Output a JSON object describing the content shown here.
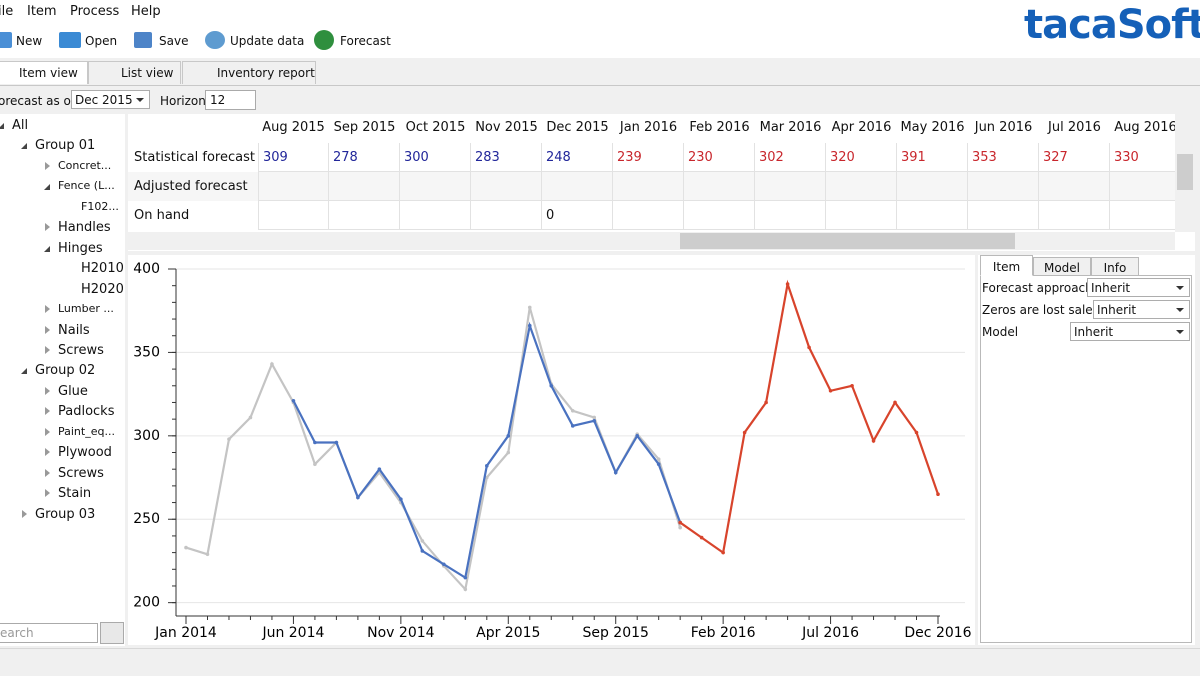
{
  "menu": [
    "ile",
    "Item",
    "Process",
    "Help"
  ],
  "toolbar": [
    "New",
    "Open",
    "Save",
    "Update data",
    "Forecast"
  ],
  "logo": "tacaSoft",
  "tabs": [
    "Item view",
    "List view",
    "Inventory report"
  ],
  "forecast_as_of": {
    "label": "orecast as of",
    "value": "Dec 2015"
  },
  "horizon": {
    "label": "Horizon",
    "value": 12
  },
  "tree": [
    "All",
    "Group 01",
    "Concret...",
    "Fence (L...",
    "F102...",
    "Handles",
    "Hinges",
    "H2010",
    "H2020",
    "Lumber ...",
    "Nails",
    "Screws",
    "Group 02",
    "Glue",
    "Padlocks",
    "Paint_eq...",
    "Plywood",
    "Screws",
    "Stain",
    "Group 03"
  ],
  "search": "earch",
  "grid": {
    "columns": [
      "Aug 2015",
      "Sep 2015",
      "Oct 2015",
      "Nov 2015",
      "Dec 2015",
      "Jan 2016",
      "Feb 2016",
      "Mar 2016",
      "Apr 2016",
      "May 2016",
      "Jun 2016",
      "Jul 2016",
      "Aug 2016"
    ],
    "rows": [
      {
        "label": "Statistical forecast",
        "values": [
          309,
          278,
          300,
          283,
          248,
          239,
          230,
          302,
          320,
          391,
          353,
          327,
          330
        ]
      },
      {
        "label": "Adjusted forecast",
        "values": [
          null,
          null,
          null,
          null,
          null,
          null,
          null,
          null,
          null,
          null,
          null,
          null,
          null
        ]
      },
      {
        "label": "On hand",
        "values": [
          null,
          null,
          null,
          null,
          0,
          null,
          null,
          null,
          null,
          null,
          null,
          null,
          null
        ]
      }
    ],
    "history_color": "#22279a",
    "forecast_color": "#c8262c"
  },
  "chart_data": {
    "type": "line",
    "categories": [
      "Jan 2014",
      null,
      null,
      null,
      null,
      "Jun 2014",
      null,
      null,
      null,
      null,
      "Nov 2014",
      null,
      null,
      null,
      null,
      "Apr 2015",
      null,
      null,
      null,
      null,
      "Sep 2015",
      null,
      null,
      null,
      null,
      "Feb 2016",
      null,
      null,
      null,
      null,
      "Jul 2016",
      null,
      null,
      null,
      null,
      "Dec 2016"
    ],
    "series": [
      {
        "color": "#c4c4c4",
        "values": [
          233,
          229,
          298,
          311,
          343,
          320,
          283,
          296,
          263,
          278,
          260,
          237,
          222,
          208,
          275,
          290,
          377,
          331,
          315,
          311,
          278,
          301,
          286,
          245,
          null,
          null,
          null,
          null,
          null,
          null,
          null,
          null,
          null,
          null,
          null,
          null
        ]
      },
      {
        "color": "#4a72c0",
        "values": [
          null,
          null,
          null,
          null,
          null,
          321,
          296,
          296,
          263,
          280,
          262,
          231,
          223,
          215,
          282,
          300,
          366,
          330,
          306,
          309,
          278,
          300,
          283,
          248,
          null,
          null,
          null,
          null,
          null,
          null,
          null,
          null,
          null,
          null,
          null,
          null
        ]
      },
      {
        "color": "#d8442c",
        "values": [
          null,
          null,
          null,
          null,
          null,
          null,
          null,
          null,
          null,
          null,
          null,
          null,
          null,
          null,
          null,
          null,
          null,
          null,
          null,
          null,
          null,
          null,
          null,
          248,
          239,
          230,
          302,
          320,
          391,
          353,
          327,
          330,
          297,
          320,
          302,
          265
        ]
      }
    ],
    "ylim": [
      192,
      400
    ],
    "yticks": [
      200,
      250,
      300,
      350,
      400
    ],
    "grid": true
  },
  "properties": {
    "tabs": [
      "Item",
      "Model",
      "Info"
    ],
    "rows": [
      {
        "label": "Forecast approach",
        "value": "Inherit"
      },
      {
        "label": "Zeros are lost sales",
        "value": "Inherit"
      },
      {
        "label": "Model",
        "value": "Inherit"
      }
    ]
  }
}
